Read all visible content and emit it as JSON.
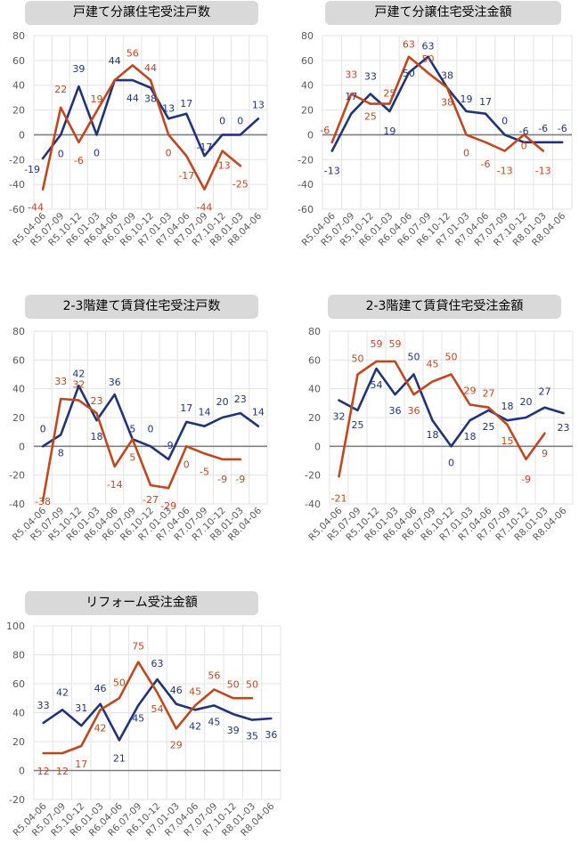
{
  "colors": {
    "blue": "#203478",
    "orange": "#c0481f",
    "axis": "#7f7f7f",
    "grid": "#e3e3e3",
    "title_bg": "#d9d9d9"
  },
  "categories": [
    "R5.04-06",
    "R5.07-09",
    "R5.10-12",
    "R6.01-03",
    "R6.04-06",
    "R6.07-09",
    "R6.10-12",
    "R7.01-03",
    "R7.04-06",
    "R7.07-09",
    "R7.10-12",
    "R8.01-03",
    "R8.04-06"
  ],
  "chart_data": [
    {
      "type": "line",
      "title": "戸建て分譲住宅受注戸数",
      "ylim": [
        -60,
        80
      ],
      "yticks": [
        80,
        60,
        40,
        20,
        0,
        -20,
        -40,
        -60
      ],
      "grid": true,
      "series": [
        {
          "color": "blue",
          "values": [
            -19,
            0,
            39,
            0,
            44,
            44,
            38,
            13,
            17,
            -17,
            0,
            0,
            13
          ]
        },
        {
          "color": "orange",
          "values": [
            -44,
            22,
            -6,
            19,
            44,
            56,
            44,
            0,
            -17,
            -44,
            -13,
            -25,
            null
          ]
        }
      ]
    },
    {
      "type": "line",
      "title": "戸建て分譲住宅受注金額",
      "ylim": [
        -60,
        80
      ],
      "yticks": [
        80,
        60,
        40,
        20,
        0,
        -20,
        -40,
        -60
      ],
      "grid": true,
      "series": [
        {
          "color": "blue",
          "values": [
            -13,
            17,
            33,
            19,
            50,
            63,
            38,
            19,
            17,
            0,
            -6,
            -6,
            -6
          ]
        },
        {
          "color": "orange",
          "values": [
            -6,
            33,
            25,
            25,
            63,
            50,
            38,
            0,
            -6,
            -13,
            0,
            -13,
            null
          ]
        }
      ]
    },
    {
      "type": "line",
      "title": "2-3階建て賃貸住宅受注戸数",
      "ylim": [
        -40,
        80
      ],
      "yticks": [
        80,
        60,
        40,
        20,
        0,
        -20,
        -40
      ],
      "grid": true,
      "series": [
        {
          "color": "blue",
          "values": [
            0,
            8,
            42,
            18,
            36,
            5,
            0,
            -9,
            17,
            14,
            20,
            23,
            14
          ]
        },
        {
          "color": "orange",
          "values": [
            -38,
            33,
            32,
            23,
            -14,
            5,
            -27,
            -29,
            0,
            -5,
            -9,
            -9,
            null
          ]
        }
      ]
    },
    {
      "type": "line",
      "title": "2-3階建て賃貸住宅受注金額",
      "ylim": [
        -40,
        80
      ],
      "yticks": [
        80,
        60,
        40,
        20,
        0,
        -20,
        -40
      ],
      "grid": true,
      "series": [
        {
          "color": "blue",
          "values": [
            32,
            25,
            54,
            36,
            50,
            18,
            0,
            18,
            25,
            18,
            20,
            27,
            23
          ]
        },
        {
          "color": "orange",
          "values": [
            -21,
            50,
            59,
            59,
            36,
            45,
            50,
            29,
            27,
            15,
            -9,
            9,
            null
          ]
        }
      ]
    },
    {
      "type": "line",
      "title": "リフォーム受注金額",
      "ylim": [
        -20,
        100
      ],
      "yticks": [
        100,
        80,
        60,
        40,
        20,
        0,
        -20
      ],
      "grid": true,
      "series": [
        {
          "color": "blue",
          "values": [
            33,
            42,
            31,
            46,
            21,
            45,
            63,
            46,
            42,
            45,
            39,
            35,
            36
          ]
        },
        {
          "color": "orange",
          "values": [
            12,
            12,
            17,
            42,
            50,
            75,
            54,
            29,
            45,
            56,
            50,
            50,
            null
          ]
        }
      ]
    }
  ]
}
